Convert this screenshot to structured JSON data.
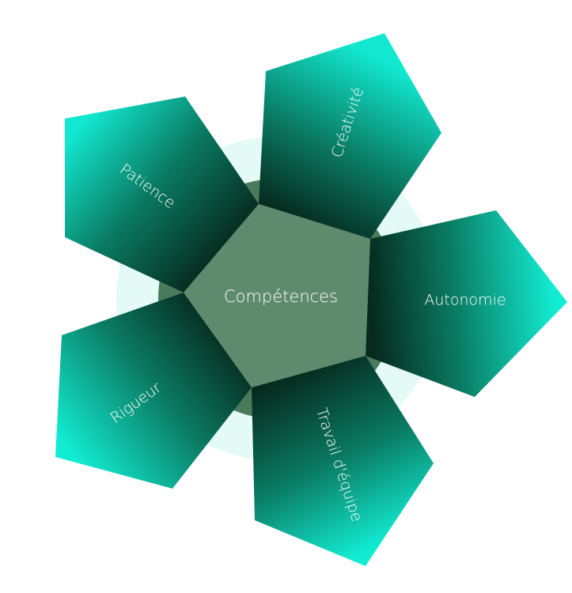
{
  "center": {
    "label": "Compétences"
  },
  "petals": [
    {
      "id": "creativite",
      "label": "Créativité"
    },
    {
      "id": "autonomie",
      "label": "Autonomie"
    },
    {
      "id": "travail-equipe",
      "label": "Travail d'équipe"
    },
    {
      "id": "rigueur",
      "label": "Rigueur"
    },
    {
      "id": "patience",
      "label": "Patience"
    }
  ],
  "colors": {
    "outer_halo": "#e3faf6",
    "inner_ring": "#4a7a5c",
    "center_fill": "#5e8a6e",
    "petal_light": "#0fe8cf",
    "petal_dark": "#062a1e",
    "text": "#ffffff"
  }
}
